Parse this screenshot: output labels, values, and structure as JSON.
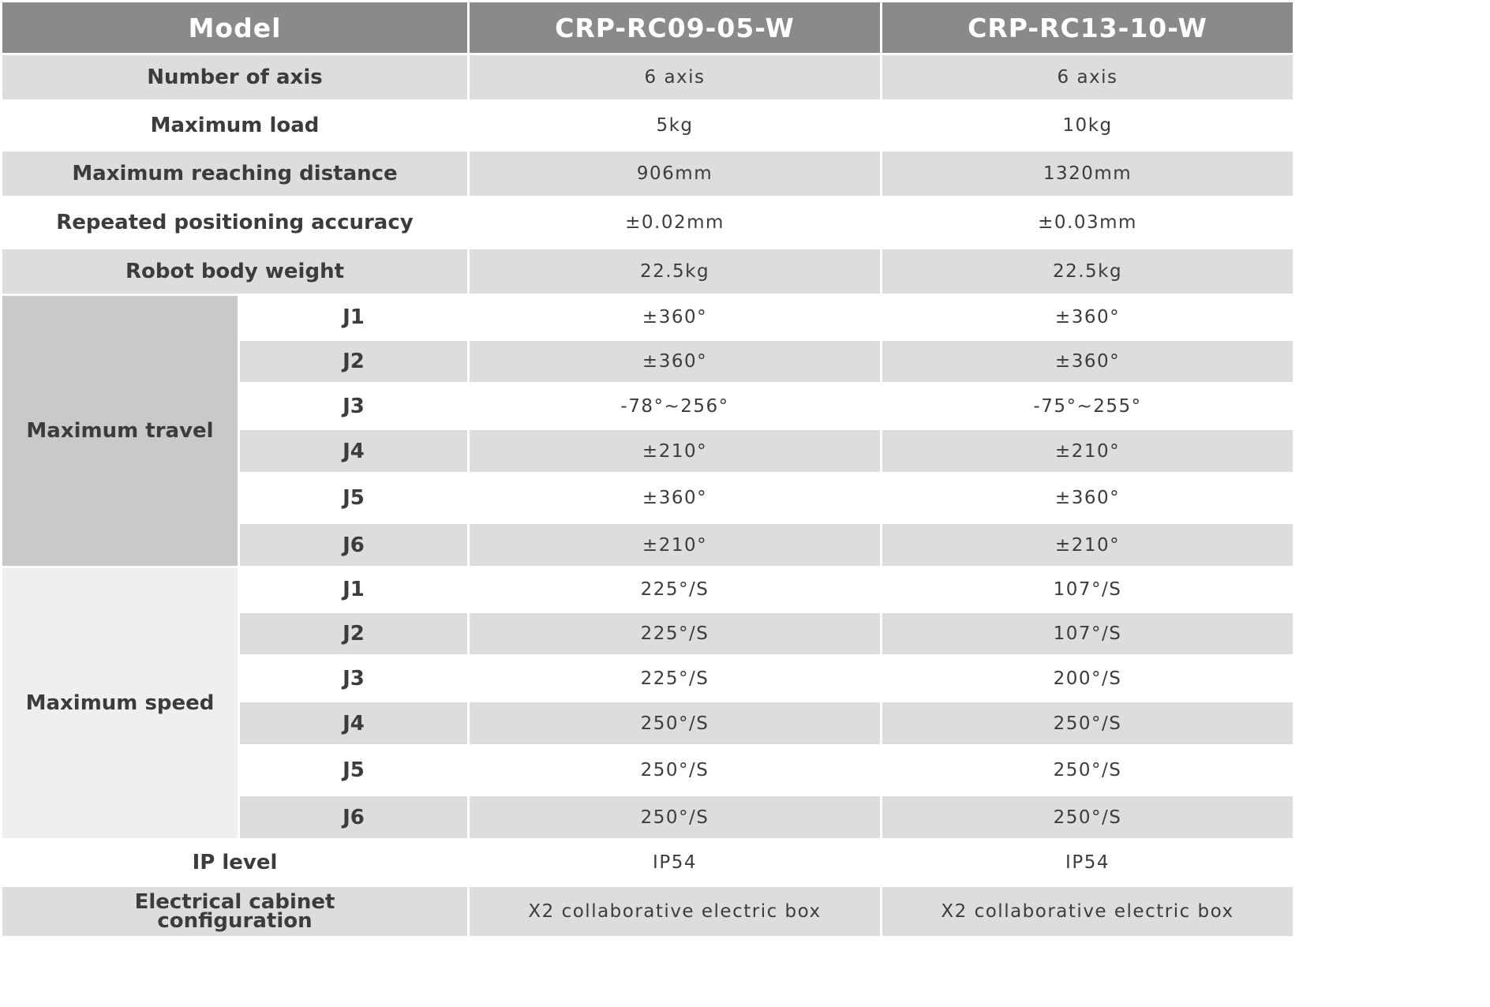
{
  "header": {
    "model_label": "Model",
    "models": [
      "CRP-RC09-05-W",
      "CRP-RC13-10-W"
    ]
  },
  "rows": [
    {
      "label": "Number of axis",
      "values": [
        "6 axis",
        "6 axis"
      ]
    },
    {
      "label": "Maximum load",
      "values": [
        "5kg",
        "10kg"
      ]
    },
    {
      "label": "Maximum reaching distance",
      "values": [
        "906mm",
        "1320mm"
      ]
    },
    {
      "label": "Repeated positioning accuracy",
      "values": [
        "±0.02mm",
        "±0.03mm"
      ]
    },
    {
      "label": "Robot body weight",
      "values": [
        "22.5kg",
        "22.5kg"
      ]
    }
  ],
  "groups": [
    {
      "label": "Maximum travel",
      "rows": [
        {
          "joint": "J1",
          "values": [
            "±360°",
            "±360°"
          ]
        },
        {
          "joint": "J2",
          "values": [
            "±360°",
            "±360°"
          ]
        },
        {
          "joint": "J3",
          "values": [
            "-78°~256°",
            "-75°~255°"
          ]
        },
        {
          "joint": "J4",
          "values": [
            "±210°",
            "±210°"
          ]
        },
        {
          "joint": "J5",
          "values": [
            "±360°",
            "±360°"
          ]
        },
        {
          "joint": "J6",
          "values": [
            "±210°",
            "±210°"
          ]
        }
      ]
    },
    {
      "label": "Maximum speed",
      "rows": [
        {
          "joint": "J1",
          "values": [
            "225°/S",
            "107°/S"
          ]
        },
        {
          "joint": "J2",
          "values": [
            "225°/S",
            "107°/S"
          ]
        },
        {
          "joint": "J3",
          "values": [
            "225°/S",
            "200°/S"
          ]
        },
        {
          "joint": "J4",
          "values": [
            "250°/S",
            "250°/S"
          ]
        },
        {
          "joint": "J5",
          "values": [
            "250°/S",
            "250°/S"
          ]
        },
        {
          "joint": "J6",
          "values": [
            "250°/S",
            "250°/S"
          ]
        }
      ]
    }
  ],
  "footer_rows": [
    {
      "label": "IP level",
      "values": [
        "IP54",
        "IP54"
      ]
    },
    {
      "label": "Electrical cabinet configuration",
      "values": [
        "X2 collaborative electric box",
        "X2 collaborative electric box"
      ]
    }
  ]
}
